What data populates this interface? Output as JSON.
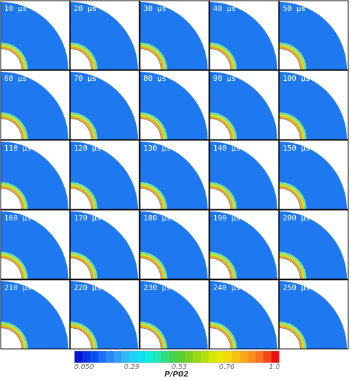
{
  "panels": [
    {
      "label": "10 μs"
    },
    {
      "label": "20 μs"
    },
    {
      "label": "30 μs"
    },
    {
      "label": "40 μs"
    },
    {
      "label": "50 μs"
    },
    {
      "label": "60 μs"
    },
    {
      "label": "70 μs"
    },
    {
      "label": "80 μs"
    },
    {
      "label": "90 μs"
    },
    {
      "label": "100 μs"
    },
    {
      "label": "110 μs"
    },
    {
      "label": "120 μs"
    },
    {
      "label": "130 μs"
    },
    {
      "label": "140 μs"
    },
    {
      "label": "150 μs"
    },
    {
      "label": "160 μs"
    },
    {
      "label": "170 μs"
    },
    {
      "label": "180 μs"
    },
    {
      "label": "190 μs"
    },
    {
      "label": "200 μs"
    },
    {
      "label": "210 μs"
    },
    {
      "label": "220 μs"
    },
    {
      "label": "230 μs"
    },
    {
      "label": "240 μs"
    },
    {
      "label": "250 μs"
    }
  ],
  "colorbar": {
    "ticks": [
      "0.050",
      "0.29",
      "0.53",
      "0.76",
      "1.0"
    ],
    "label": "P/P02"
  }
}
